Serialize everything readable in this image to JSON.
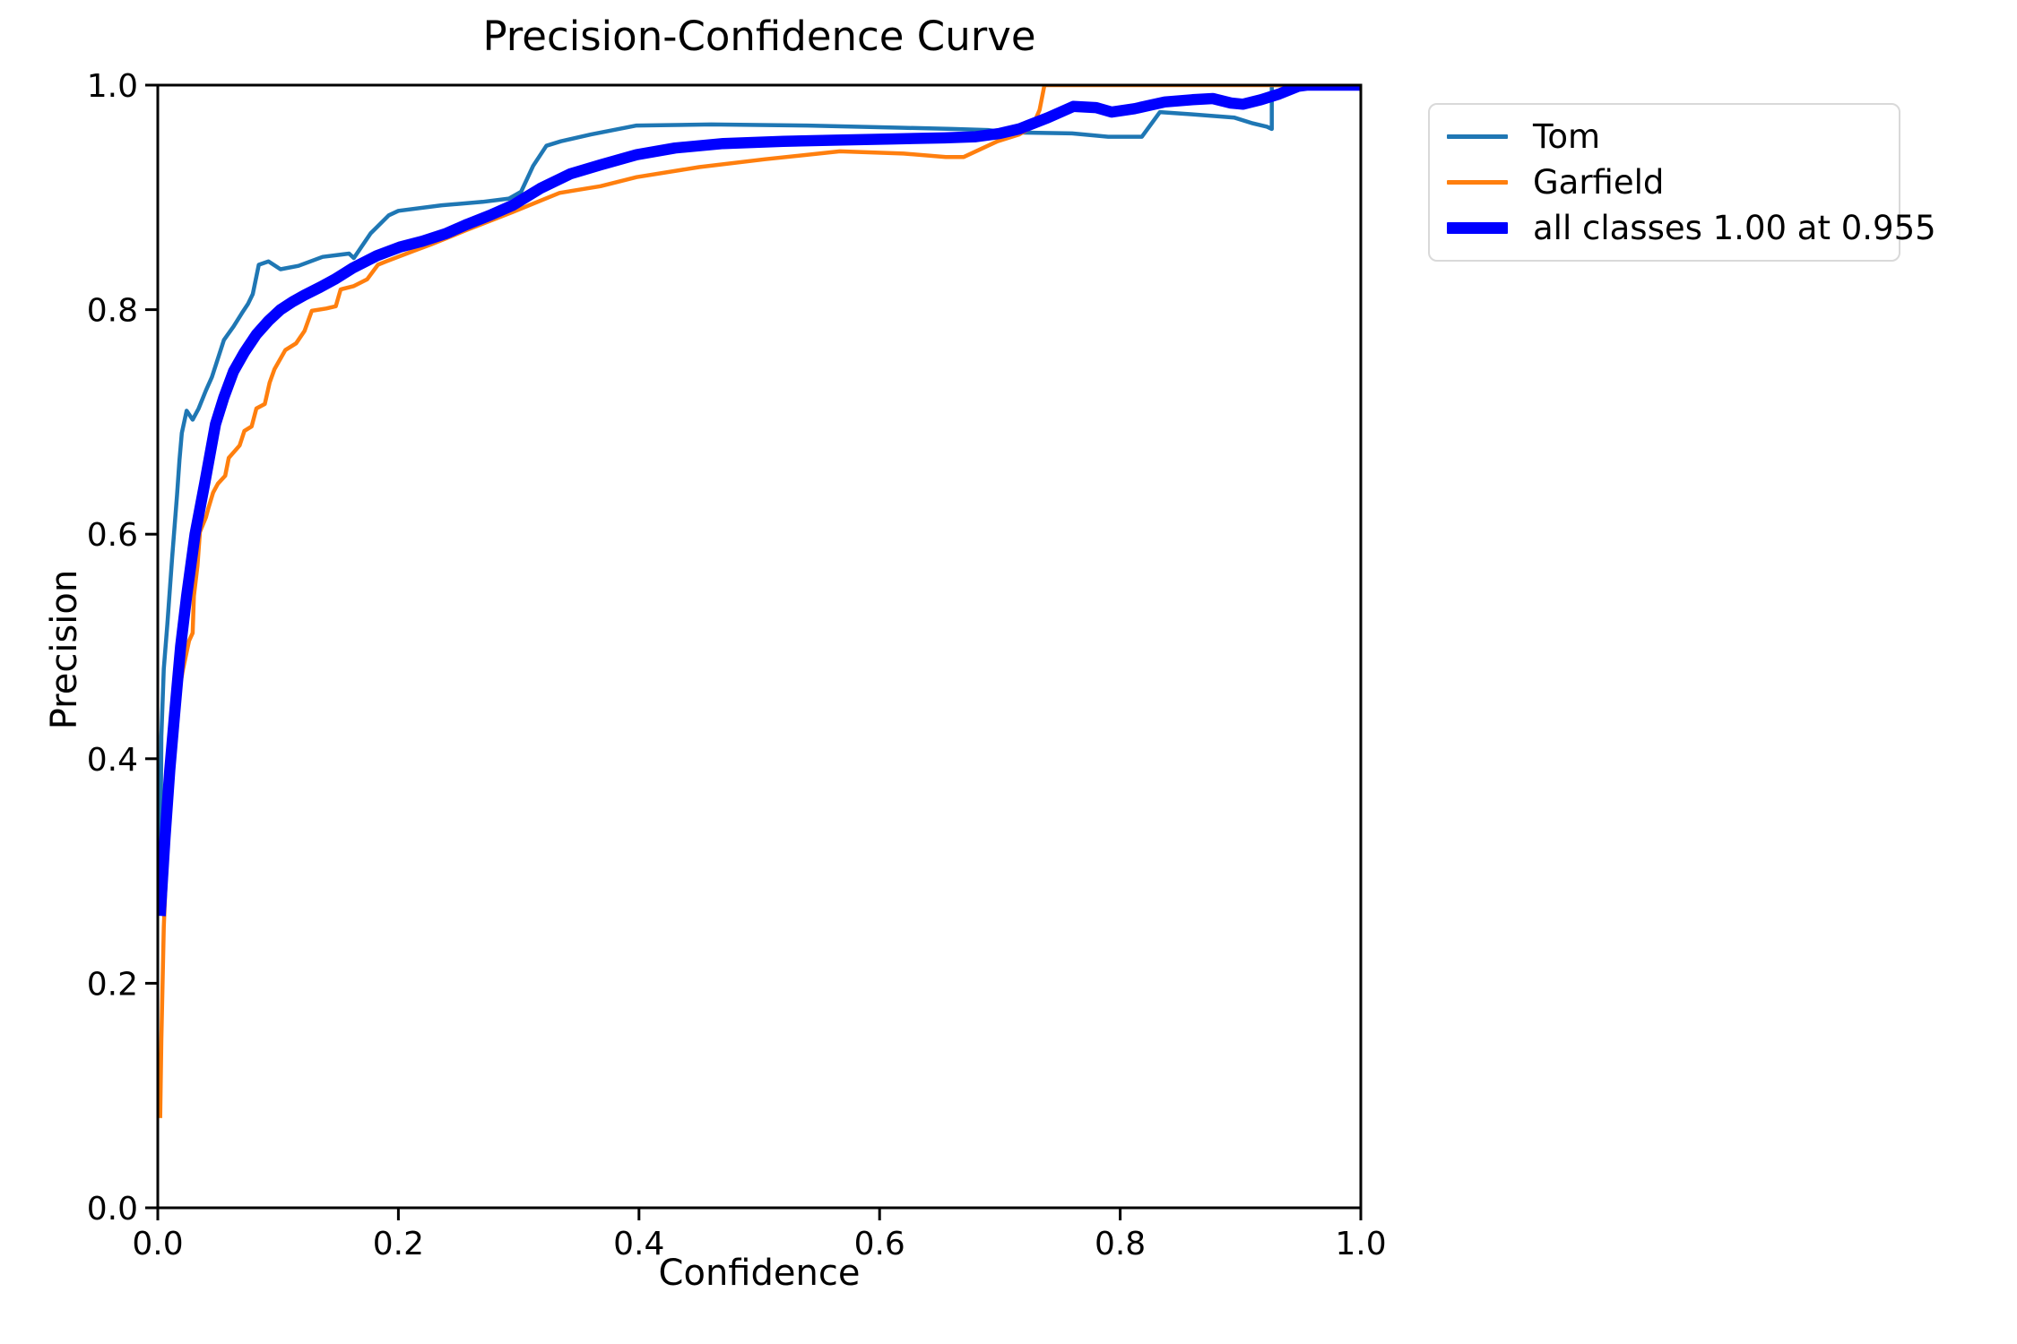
{
  "figure": {
    "background_color": "#ffffff",
    "axis_color": "#000000",
    "legend_border_color": "#d9d9d9"
  },
  "chart_data": {
    "type": "line",
    "title": "Precision-Confidence Curve",
    "xlabel": "Confidence",
    "ylabel": "Precision",
    "xlim": [
      0.0,
      1.0
    ],
    "ylim": [
      0.0,
      1.0
    ],
    "grid": false,
    "legend_position": "outside upper right",
    "xticks": {
      "values": [
        0.0,
        0.2,
        0.4,
        0.6,
        0.8,
        1.0
      ],
      "labels": [
        "0.0",
        "0.2",
        "0.4",
        "0.6",
        "0.8",
        "1.0"
      ]
    },
    "yticks": {
      "values": [
        0.0,
        0.2,
        0.4,
        0.6,
        0.8,
        1.0
      ],
      "labels": [
        "0.0",
        "0.2",
        "0.4",
        "0.6",
        "0.8",
        "1.0"
      ]
    },
    "series": [
      {
        "name": "Tom",
        "legend_label": "Tom",
        "color": "#1f77b4",
        "line_width": 4.5,
        "points": [
          [
            0.002,
            0.27
          ],
          [
            0.003,
            0.42
          ],
          [
            0.005,
            0.48
          ],
          [
            0.008,
            0.52
          ],
          [
            0.012,
            0.58
          ],
          [
            0.016,
            0.635
          ],
          [
            0.018,
            0.666
          ],
          [
            0.02,
            0.69
          ],
          [
            0.024,
            0.71
          ],
          [
            0.029,
            0.702
          ],
          [
            0.034,
            0.712
          ],
          [
            0.04,
            0.728
          ],
          [
            0.045,
            0.74
          ],
          [
            0.055,
            0.773
          ],
          [
            0.063,
            0.785
          ],
          [
            0.07,
            0.797
          ],
          [
            0.075,
            0.805
          ],
          [
            0.079,
            0.814
          ],
          [
            0.084,
            0.84
          ],
          [
            0.092,
            0.843
          ],
          [
            0.102,
            0.836
          ],
          [
            0.117,
            0.839
          ],
          [
            0.137,
            0.847
          ],
          [
            0.159,
            0.85
          ],
          [
            0.163,
            0.846
          ],
          [
            0.177,
            0.868
          ],
          [
            0.192,
            0.884
          ],
          [
            0.2,
            0.888
          ],
          [
            0.236,
            0.893
          ],
          [
            0.27,
            0.896
          ],
          [
            0.292,
            0.899
          ],
          [
            0.302,
            0.905
          ],
          [
            0.312,
            0.928
          ],
          [
            0.323,
            0.946
          ],
          [
            0.335,
            0.95
          ],
          [
            0.36,
            0.956
          ],
          [
            0.398,
            0.964
          ],
          [
            0.46,
            0.965
          ],
          [
            0.54,
            0.964
          ],
          [
            0.62,
            0.962
          ],
          [
            0.66,
            0.961
          ],
          [
            0.69,
            0.96
          ],
          [
            0.705,
            0.958
          ],
          [
            0.76,
            0.957
          ],
          [
            0.79,
            0.954
          ],
          [
            0.818,
            0.954
          ],
          [
            0.833,
            0.976
          ],
          [
            0.86,
            0.974
          ],
          [
            0.895,
            0.971
          ],
          [
            0.91,
            0.966
          ],
          [
            0.922,
            0.963
          ],
          [
            0.926,
            0.961
          ],
          [
            0.926,
            1.0
          ],
          [
            1.0,
            1.0
          ]
        ]
      },
      {
        "name": "Garfield",
        "legend_label": "Garfield",
        "color": "#ff7f0e",
        "line_width": 4.5,
        "points": [
          [
            0.002,
            0.08
          ],
          [
            0.003,
            0.15
          ],
          [
            0.005,
            0.25
          ],
          [
            0.008,
            0.33
          ],
          [
            0.012,
            0.4
          ],
          [
            0.016,
            0.45
          ],
          [
            0.021,
            0.48
          ],
          [
            0.026,
            0.505
          ],
          [
            0.029,
            0.512
          ],
          [
            0.03,
            0.545
          ],
          [
            0.033,
            0.572
          ],
          [
            0.035,
            0.602
          ],
          [
            0.04,
            0.615
          ],
          [
            0.042,
            0.623
          ],
          [
            0.046,
            0.637
          ],
          [
            0.05,
            0.645
          ],
          [
            0.056,
            0.652
          ],
          [
            0.059,
            0.668
          ],
          [
            0.068,
            0.679
          ],
          [
            0.072,
            0.692
          ],
          [
            0.078,
            0.696
          ],
          [
            0.082,
            0.712
          ],
          [
            0.089,
            0.716
          ],
          [
            0.093,
            0.735
          ],
          [
            0.097,
            0.747
          ],
          [
            0.106,
            0.764
          ],
          [
            0.115,
            0.77
          ],
          [
            0.122,
            0.781
          ],
          [
            0.128,
            0.799
          ],
          [
            0.14,
            0.801
          ],
          [
            0.148,
            0.803
          ],
          [
            0.152,
            0.818
          ],
          [
            0.163,
            0.821
          ],
          [
            0.174,
            0.827
          ],
          [
            0.183,
            0.84
          ],
          [
            0.19,
            0.843
          ],
          [
            0.212,
            0.852
          ],
          [
            0.227,
            0.858
          ],
          [
            0.257,
            0.871
          ],
          [
            0.295,
            0.887
          ],
          [
            0.334,
            0.904
          ],
          [
            0.368,
            0.91
          ],
          [
            0.398,
            0.918
          ],
          [
            0.45,
            0.927
          ],
          [
            0.505,
            0.934
          ],
          [
            0.567,
            0.941
          ],
          [
            0.62,
            0.939
          ],
          [
            0.655,
            0.936
          ],
          [
            0.67,
            0.936
          ],
          [
            0.698,
            0.95
          ],
          [
            0.716,
            0.956
          ],
          [
            0.727,
            0.963
          ],
          [
            0.733,
            0.978
          ],
          [
            0.737,
            1.0
          ],
          [
            1.0,
            1.0
          ]
        ]
      },
      {
        "name": "all classes",
        "legend_label": "all classes 1.00 at 0.955",
        "color": "#0000ff",
        "line_width": 12.5,
        "points": [
          [
            0.002,
            0.26
          ],
          [
            0.006,
            0.33
          ],
          [
            0.01,
            0.39
          ],
          [
            0.014,
            0.44
          ],
          [
            0.019,
            0.5
          ],
          [
            0.024,
            0.545
          ],
          [
            0.031,
            0.6
          ],
          [
            0.039,
            0.645
          ],
          [
            0.048,
            0.698
          ],
          [
            0.055,
            0.722
          ],
          [
            0.063,
            0.745
          ],
          [
            0.072,
            0.762
          ],
          [
            0.082,
            0.778
          ],
          [
            0.092,
            0.79
          ],
          [
            0.102,
            0.8
          ],
          [
            0.112,
            0.807
          ],
          [
            0.122,
            0.813
          ],
          [
            0.135,
            0.82
          ],
          [
            0.147,
            0.827
          ],
          [
            0.162,
            0.837
          ],
          [
            0.182,
            0.848
          ],
          [
            0.202,
            0.856
          ],
          [
            0.22,
            0.861
          ],
          [
            0.24,
            0.868
          ],
          [
            0.257,
            0.876
          ],
          [
            0.276,
            0.884
          ],
          [
            0.295,
            0.893
          ],
          [
            0.318,
            0.908
          ],
          [
            0.343,
            0.921
          ],
          [
            0.368,
            0.929
          ],
          [
            0.398,
            0.938
          ],
          [
            0.43,
            0.944
          ],
          [
            0.47,
            0.948
          ],
          [
            0.52,
            0.95
          ],
          [
            0.565,
            0.951
          ],
          [
            0.61,
            0.952
          ],
          [
            0.654,
            0.953
          ],
          [
            0.68,
            0.954
          ],
          [
            0.7,
            0.957
          ],
          [
            0.716,
            0.961
          ],
          [
            0.74,
            0.971
          ],
          [
            0.761,
            0.981
          ],
          [
            0.78,
            0.98
          ],
          [
            0.793,
            0.976
          ],
          [
            0.812,
            0.979
          ],
          [
            0.837,
            0.985
          ],
          [
            0.86,
            0.987
          ],
          [
            0.877,
            0.988
          ],
          [
            0.892,
            0.984
          ],
          [
            0.902,
            0.983
          ],
          [
            0.917,
            0.987
          ],
          [
            0.932,
            0.992
          ],
          [
            0.948,
            0.999
          ],
          [
            0.955,
            1.0
          ],
          [
            1.0,
            1.0
          ]
        ]
      }
    ]
  }
}
